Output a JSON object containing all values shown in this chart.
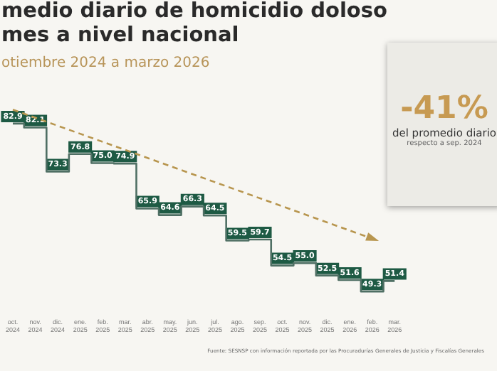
{
  "chart_data": {
    "type": "step",
    "title": "medio diario de homicidio doloso\nmes a nivel nacional",
    "subtitle": "otiembre 2024 a marzo 2026",
    "categories": [
      "oct. 2024",
      "nov. 2024",
      "dic. 2024",
      "ene. 2025",
      "feb. 2025",
      "mar. 2025",
      "abr. 2025",
      "may. 2025",
      "jun. 2025",
      "jul. 2025",
      "ago. 2025",
      "sep. 2025",
      "oct. 2025",
      "nov. 2025",
      "dic. 2025",
      "ene. 2026",
      "feb. 2026",
      "mar. 2026"
    ],
    "series": [
      {
        "color": "#4f6f64",
        "values": [
          82.9,
          82.1,
          73.3,
          76.8,
          75.0,
          74.9,
          65.9,
          64.6,
          66.3,
          64.5,
          59.5,
          59.7,
          54.5,
          55.0,
          52.5,
          51.6,
          49.3,
          51.4
        ],
        "value_labels": [
          "82.9",
          "82.1",
          "73.3",
          "76.8",
          "75.0",
          "74.9",
          "65.9",
          "64.6",
          "66.3",
          "64.5",
          "59.5",
          "59.7",
          "54.5",
          "55.0",
          "52.5",
          "51.6",
          "49.3",
          "51.4"
        ]
      },
      {
        "type": "line",
        "line_style": "dashed",
        "color": "#b8964f",
        "values": [
          85.7,
          null,
          null,
          null,
          null,
          null,
          null,
          null,
          null,
          null,
          null,
          null,
          null,
          null,
          null,
          null,
          59.9,
          null
        ]
      }
    ],
    "tick_labels": "x",
    "grid": false,
    "legend": false,
    "annotations": [
      "-41%",
      "del promedio diario",
      "respecto a sep. 2024",
      "Fuente: SESNSP con información reportada por las Procuradurías Generales de Justicia y Fiscalías Generales"
    ]
  }
}
